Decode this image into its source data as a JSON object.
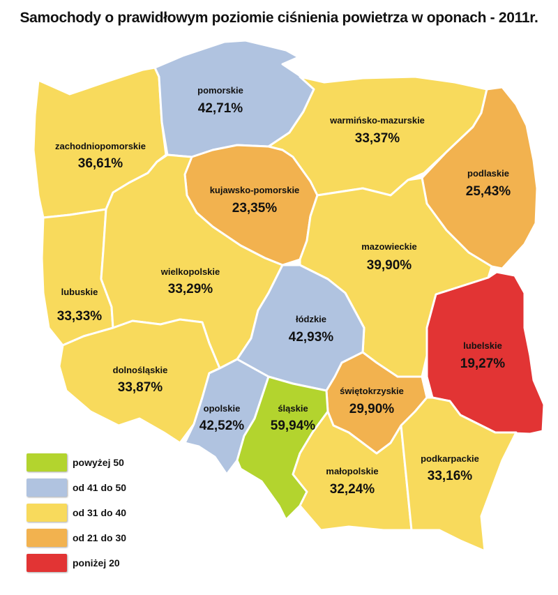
{
  "title": "Samochody o prawidłowym poziomie ciśnienia powietrza w oponach - 2011r.",
  "colors": {
    "green": "#b3d42e",
    "blue": "#b0c3e0",
    "yellow": "#f8da5c",
    "orange": "#f2b24f",
    "red": "#e23434"
  },
  "regions": {
    "pomorskie": {
      "name": "pomorskie",
      "value": "42,71%",
      "class": "blue"
    },
    "warminsko": {
      "name": "warmińsko-mazurskie",
      "value": "33,37%",
      "class": "yellow"
    },
    "zachodniopomorskie": {
      "name": "zachodniopomorskie",
      "value": "36,61%",
      "class": "yellow"
    },
    "podlaskie": {
      "name": "podlaskie",
      "value": "25,43%",
      "class": "orange"
    },
    "kujawsko": {
      "name": "kujawsko-pomorskie",
      "value": "23,35%",
      "class": "orange"
    },
    "mazowieckie": {
      "name": "mazowieckie",
      "value": "39,90%",
      "class": "yellow"
    },
    "wielkopolskie": {
      "name": "wielkopolskie",
      "value": "33,29%",
      "class": "yellow"
    },
    "lubuskie": {
      "name": "lubuskie",
      "value": "33,33%",
      "class": "yellow"
    },
    "lodzkie": {
      "name": "łódzkie",
      "value": "42,93%",
      "class": "blue"
    },
    "lubelskie": {
      "name": "lubelskie",
      "value": "19,27%",
      "class": "red"
    },
    "dolnoslaskie": {
      "name": "dolnośląskie",
      "value": "33,87%",
      "class": "yellow"
    },
    "swietokrzyskie": {
      "name": "świętokrzyskie",
      "value": "29,90%",
      "class": "orange"
    },
    "opolskie": {
      "name": "opolskie",
      "value": "42,52%",
      "class": "blue"
    },
    "slaskie": {
      "name": "śląskie",
      "value": "59,94%",
      "class": "green"
    },
    "malopolskie": {
      "name": "małopolskie",
      "value": "32,24%",
      "class": "yellow"
    },
    "podkarpackie": {
      "name": "podkarpackie",
      "value": "33,16%",
      "class": "yellow"
    }
  },
  "legend": [
    {
      "label": "powyżej 50",
      "color": "#b3d42e"
    },
    {
      "label": "od 41 do 50",
      "color": "#b0c3e0"
    },
    {
      "label": "od 31 do 40",
      "color": "#f8da5c"
    },
    {
      "label": "od 21 do 30",
      "color": "#f2b24f"
    },
    {
      "label": "poniżej 20",
      "color": "#e23434"
    }
  ]
}
